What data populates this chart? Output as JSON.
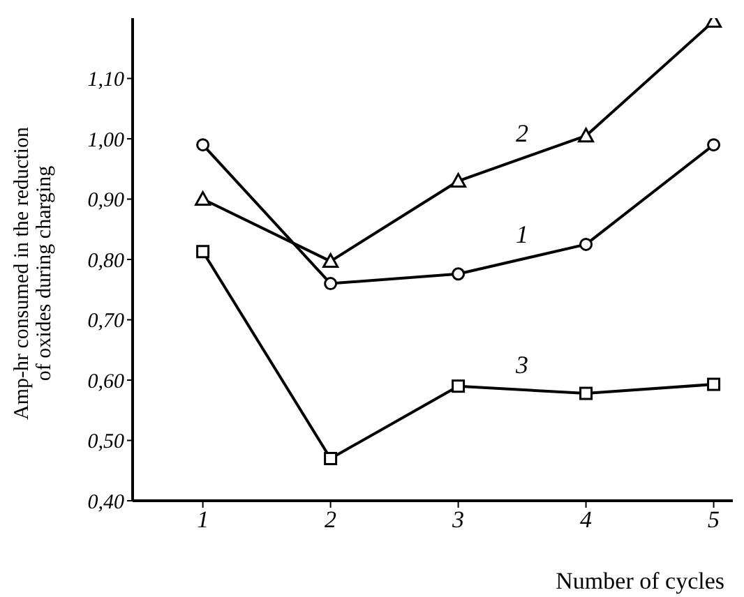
{
  "chart_data": {
    "type": "line",
    "xlabel": "Number of cycles",
    "ylabel": "Amp-hr consumed in the reduction of oxides during charging",
    "x": [
      1,
      2,
      3,
      4,
      5
    ],
    "series": [
      {
        "name": "1",
        "color": "#000000",
        "marker": "circle",
        "values": [
          0.99,
          0.76,
          0.776,
          0.825,
          0.99
        ]
      },
      {
        "name": "2",
        "color": "#000000",
        "marker": "triangle",
        "values": [
          0.9,
          0.797,
          0.93,
          1.005,
          1.195
        ]
      },
      {
        "name": "3",
        "color": "#000000",
        "marker": "square",
        "values": [
          0.813,
          0.47,
          0.59,
          0.578,
          0.593
        ]
      }
    ],
    "xlim": [
      0.45,
      5.15
    ],
    "xticks": [
      1,
      2,
      3,
      4,
      5
    ],
    "ylim": [
      0.4,
      1.2
    ],
    "yticks": [
      {
        "value": 0.4,
        "label": "0,40"
      },
      {
        "value": 0.5,
        "label": "0,50"
      },
      {
        "value": 0.6,
        "label": "0,60"
      },
      {
        "value": 0.7,
        "label": "0,70"
      },
      {
        "value": 0.8,
        "label": "0,80"
      },
      {
        "value": 0.9,
        "label": "0,90"
      },
      {
        "value": 1.0,
        "label": "1,00"
      },
      {
        "value": 1.1,
        "label": "1,10"
      }
    ],
    "grid": false,
    "legend": false,
    "line_style": "solid"
  }
}
